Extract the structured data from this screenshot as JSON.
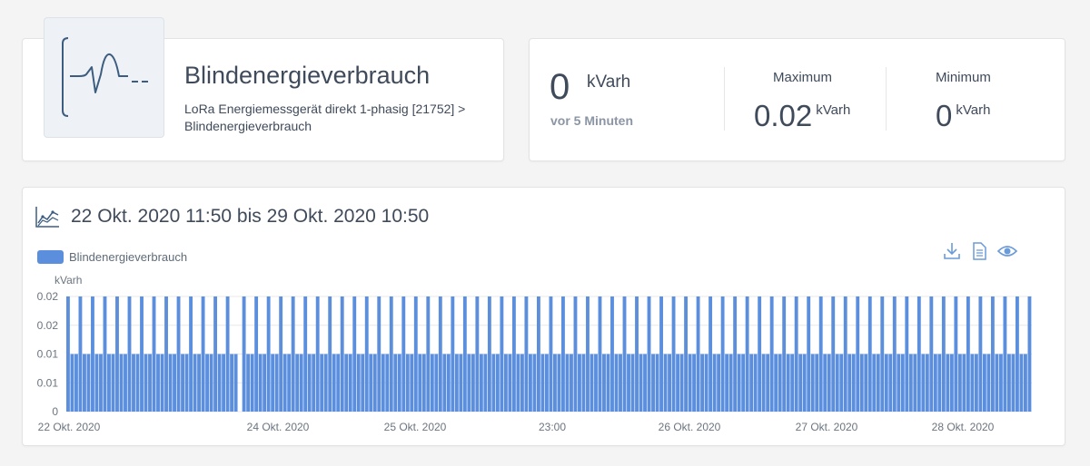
{
  "device": {
    "title": "Blindenergieverbrauch",
    "path": "LoRa Energiemessgerät direkt 1-phasig [21752] > Blindenergieverbrauch",
    "icon": "waveform-icon"
  },
  "current": {
    "value": "0",
    "unit": "kVarh",
    "time": "vor 5 Minuten"
  },
  "maximum": {
    "label": "Maximum",
    "value": "0.02",
    "unit": "kVarh"
  },
  "minimum": {
    "label": "Minimum",
    "value": "0",
    "unit": "kVarh"
  },
  "chart_header": {
    "title": "22 Okt. 2020 11:50 bis 29 Okt. 2020 10:50",
    "icon": "line-chart-icon",
    "tools": [
      "download-icon",
      "document-icon",
      "eye-icon"
    ]
  },
  "colors": {
    "bar": "#5b8fde",
    "grid": "#e8e8e8",
    "text": "#3f4a5a"
  },
  "chart_data": {
    "type": "bar",
    "title": "",
    "ylabel": "kVarh",
    "ylim": [
      0,
      0.02
    ],
    "y_ticks": [
      "0",
      "0.01",
      "0.01",
      "0.02",
      "0.02"
    ],
    "x_tick_labels": [
      "22 Okt. 2020",
      "24 Okt. 2020",
      "25 Okt. 2020",
      "23:00",
      "26 Okt. 2020",
      "27 Okt. 2020",
      "28 Okt. 2020"
    ],
    "legend": "top-left",
    "grid": true,
    "series": [
      {
        "name": "Blindenergieverbrauch",
        "values": [
          0.02,
          0.01,
          0.01,
          0.02,
          0.01,
          0.01,
          0.02,
          0.01,
          0.01,
          0.02,
          0.01,
          0.01,
          0.02,
          0.01,
          0.01,
          0.02,
          0.01,
          0.01,
          0.02,
          0.01,
          0.01,
          0.02,
          0.01,
          0.01,
          0.02,
          0.01,
          0.01,
          0.02,
          0.01,
          0.01,
          0.02,
          0.01,
          0.01,
          0.02,
          0.01,
          0.01,
          0.02,
          0.01,
          0.01,
          0.02,
          0.01,
          0.01,
          0,
          0.02,
          0.01,
          0.01,
          0.02,
          0.01,
          0.01,
          0.02,
          0.01,
          0.01,
          0.02,
          0.01,
          0.01,
          0.02,
          0.01,
          0.01,
          0.02,
          0.01,
          0.01,
          0.02,
          0.01,
          0.01,
          0.02,
          0.01,
          0.01,
          0.02,
          0.01,
          0.01,
          0.02,
          0.01,
          0.01,
          0.02,
          0.01,
          0.01,
          0.02,
          0.01,
          0.01,
          0.02,
          0.01,
          0.01,
          0.02,
          0.01,
          0.01,
          0.02,
          0.01,
          0.01,
          0.02,
          0.01,
          0.01,
          0.02,
          0.01,
          0.01,
          0.02,
          0.01,
          0.01,
          0.02,
          0.01,
          0.01,
          0.02,
          0.01,
          0.01,
          0.02,
          0.01,
          0.01,
          0.02,
          0.01,
          0.01,
          0.02,
          0.01,
          0.01,
          0.02,
          0.01,
          0.01,
          0.02,
          0.01,
          0.01,
          0.02,
          0.01,
          0.01,
          0.02,
          0.01,
          0.01,
          0.02,
          0.01,
          0.01,
          0.02,
          0.01,
          0.01,
          0.02,
          0.01,
          0.01,
          0.02,
          0.01,
          0.01,
          0.02,
          0.01,
          0.01,
          0.02,
          0.01,
          0.01,
          0.02,
          0.01,
          0.01,
          0.02,
          0.01,
          0.01,
          0.02,
          0.01,
          0.01,
          0.02,
          0.01,
          0.01,
          0.02,
          0.01,
          0.01,
          0.02,
          0.01,
          0.01,
          0.02,
          0.01,
          0.01,
          0.02,
          0.01,
          0.01,
          0.02,
          0.01,
          0.01,
          0.02,
          0.01,
          0.01,
          0.02,
          0.01,
          0.01,
          0.02,
          0.01,
          0.01,
          0.02,
          0.01,
          0.01,
          0.02,
          0.01,
          0.01,
          0.02,
          0.01,
          0.01,
          0.02,
          0.01,
          0.01,
          0.02,
          0.01,
          0.01,
          0.02,
          0.01,
          0.01,
          0.02,
          0.01,
          0.01,
          0.02,
          0.01,
          0.01,
          0.02,
          0.01,
          0.01,
          0.02,
          0.01,
          0.01,
          0.02,
          0.01,
          0.01,
          0.02,
          0.01,
          0.01,
          0.02,
          0.01,
          0.01,
          0.02,
          0.01,
          0.01,
          0.02,
          0.01,
          0.01,
          0.02,
          0.01,
          0.01,
          0.02,
          0.01,
          0.01,
          0.02,
          0.01,
          0.01,
          0.02,
          0.01,
          0.01,
          0.02
        ]
      }
    ]
  }
}
